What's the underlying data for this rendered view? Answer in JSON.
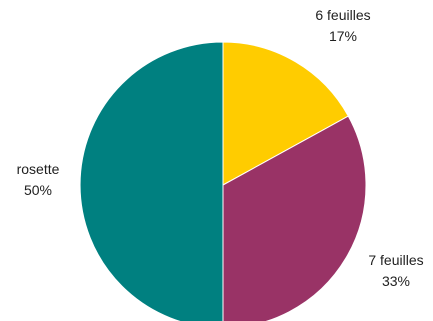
{
  "chart_data": {
    "type": "pie",
    "title": "",
    "start_angle_deg": 0,
    "direction": "clockwise",
    "slices": [
      {
        "label": "6 feuilles",
        "value": 17,
        "percent_label": "17%",
        "color": "#FFCC00"
      },
      {
        "label": "7 feuilles",
        "value": 33,
        "percent_label": "33%",
        "color": "#993366"
      },
      {
        "label": "rosette",
        "value": 50,
        "percent_label": "50%",
        "color": "#008080"
      }
    ],
    "legend": "none",
    "data_labels": "outside"
  }
}
